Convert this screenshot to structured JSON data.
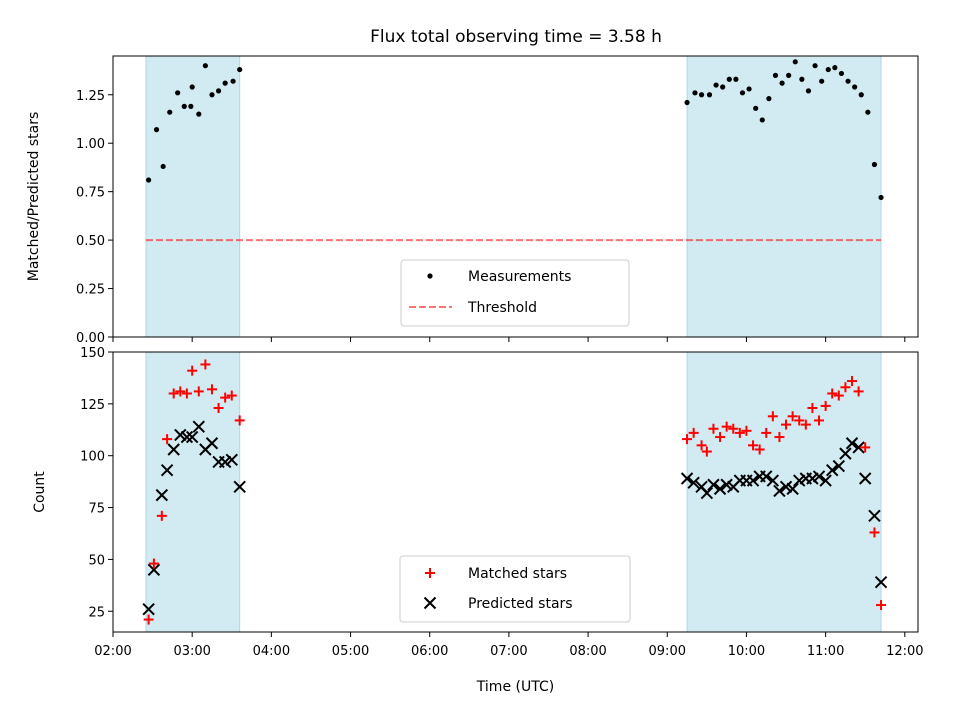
{
  "colors": {
    "band": "#add8e6",
    "measurement": "#000000",
    "threshold": "#ff0000",
    "matched": "#ff0000",
    "predicted": "#000000"
  },
  "chart_data": [
    {
      "type": "scatter",
      "title": "Flux total observing time = 3.58 h",
      "ylabel": "Matched/Predicted stars",
      "xlabel": "",
      "xlim": [
        "02:00",
        "12:10"
      ],
      "ylim": [
        0,
        1.45
      ],
      "yticks": [
        "0.00",
        "0.25",
        "0.50",
        "0.75",
        "1.00",
        "1.25"
      ],
      "xtick_labels_shown": false,
      "observing_windows": [
        [
          "02:25",
          "03:36"
        ],
        [
          "09:15",
          "11:42"
        ]
      ],
      "threshold": {
        "name": "Threshold",
        "value": 0.5,
        "x": [
          "02:25",
          "11:42"
        ],
        "style": "dashed"
      },
      "legend": {
        "placement": "lower-center",
        "entries": [
          "Measurements",
          "Threshold"
        ]
      },
      "series": [
        {
          "name": "Measurements",
          "marker": "dot",
          "points": [
            [
              "02:27",
              0.81
            ],
            [
              "02:33",
              1.07
            ],
            [
              "02:38",
              0.88
            ],
            [
              "02:43",
              1.16
            ],
            [
              "02:49",
              1.26
            ],
            [
              "02:54",
              1.19
            ],
            [
              "02:59",
              1.19
            ],
            [
              "03:00",
              1.29
            ],
            [
              "03:05",
              1.15
            ],
            [
              "03:10",
              1.4
            ],
            [
              "03:15",
              1.25
            ],
            [
              "03:20",
              1.27
            ],
            [
              "03:25",
              1.31
            ],
            [
              "03:31",
              1.32
            ],
            [
              "03:36",
              1.38
            ],
            [
              "09:15",
              1.21
            ],
            [
              "09:21",
              1.26
            ],
            [
              "09:26",
              1.25
            ],
            [
              "09:32",
              1.25
            ],
            [
              "09:37",
              1.3
            ],
            [
              "09:42",
              1.29
            ],
            [
              "09:47",
              1.33
            ],
            [
              "09:52",
              1.33
            ],
            [
              "09:57",
              1.26
            ],
            [
              "10:02",
              1.28
            ],
            [
              "10:07",
              1.18
            ],
            [
              "10:12",
              1.12
            ],
            [
              "10:17",
              1.23
            ],
            [
              "10:22",
              1.35
            ],
            [
              "10:27",
              1.31
            ],
            [
              "10:32",
              1.35
            ],
            [
              "10:37",
              1.42
            ],
            [
              "10:42",
              1.33
            ],
            [
              "10:47",
              1.27
            ],
            [
              "10:52",
              1.4
            ],
            [
              "10:57",
              1.32
            ],
            [
              "11:02",
              1.38
            ],
            [
              "11:07",
              1.39
            ],
            [
              "11:12",
              1.36
            ],
            [
              "11:17",
              1.32
            ],
            [
              "11:22",
              1.29
            ],
            [
              "11:27",
              1.25
            ],
            [
              "11:32",
              1.16
            ],
            [
              "11:37",
              0.89
            ],
            [
              "11:42",
              0.72
            ]
          ]
        }
      ]
    },
    {
      "type": "scatter",
      "title": "",
      "ylabel": "Count",
      "xlabel": "Time (UTC)",
      "xlim": [
        "02:00",
        "12:10"
      ],
      "ylim": [
        15,
        150
      ],
      "yticks": [
        "25",
        "50",
        "75",
        "100",
        "125",
        "150"
      ],
      "xticks": [
        "02:00",
        "03:00",
        "04:00",
        "05:00",
        "06:00",
        "07:00",
        "08:00",
        "09:00",
        "10:00",
        "11:00",
        "12:00"
      ],
      "observing_windows": [
        [
          "02:25",
          "03:36"
        ],
        [
          "09:15",
          "11:42"
        ]
      ],
      "legend": {
        "placement": "lower-center",
        "entries": [
          "Matched stars",
          "Predicted stars"
        ]
      },
      "series": [
        {
          "name": "Matched stars",
          "marker": "plus",
          "points": [
            [
              "02:27",
              21
            ],
            [
              "02:31",
              48
            ],
            [
              "02:37",
              71
            ],
            [
              "02:41",
              108
            ],
            [
              "02:46",
              130
            ],
            [
              "02:51",
              131
            ],
            [
              "02:56",
              130
            ],
            [
              "03:00",
              141
            ],
            [
              "03:05",
              131
            ],
            [
              "03:10",
              144
            ],
            [
              "03:15",
              132
            ],
            [
              "03:20",
              123
            ],
            [
              "03:25",
              128
            ],
            [
              "03:30",
              129
            ],
            [
              "03:36",
              117
            ],
            [
              "09:15",
              108
            ],
            [
              "09:20",
              111
            ],
            [
              "09:26",
              105
            ],
            [
              "09:30",
              102
            ],
            [
              "09:35",
              113
            ],
            [
              "09:40",
              109
            ],
            [
              "09:45",
              114
            ],
            [
              "09:50",
              113
            ],
            [
              "09:55",
              111
            ],
            [
              "10:00",
              112
            ],
            [
              "10:05",
              105
            ],
            [
              "10:10",
              103
            ],
            [
              "10:15",
              111
            ],
            [
              "10:20",
              119
            ],
            [
              "10:25",
              109
            ],
            [
              "10:30",
              115
            ],
            [
              "10:35",
              119
            ],
            [
              "10:40",
              117
            ],
            [
              "10:45",
              115
            ],
            [
              "10:50",
              123
            ],
            [
              "10:55",
              117
            ],
            [
              "11:00",
              124
            ],
            [
              "11:05",
              130
            ],
            [
              "11:10",
              129
            ],
            [
              "11:15",
              133
            ],
            [
              "11:20",
              136
            ],
            [
              "11:25",
              131
            ],
            [
              "11:30",
              104
            ],
            [
              "11:37",
              63
            ],
            [
              "11:42",
              28
            ]
          ]
        },
        {
          "name": "Predicted stars",
          "marker": "x",
          "points": [
            [
              "02:27",
              26
            ],
            [
              "02:31",
              45
            ],
            [
              "02:37",
              81
            ],
            [
              "02:41",
              93
            ],
            [
              "02:46",
              103
            ],
            [
              "02:51",
              110
            ],
            [
              "02:56",
              109
            ],
            [
              "03:00",
              109
            ],
            [
              "03:05",
              114
            ],
            [
              "03:10",
              103
            ],
            [
              "03:15",
              106
            ],
            [
              "03:20",
              97
            ],
            [
              "03:25",
              97
            ],
            [
              "03:30",
              98
            ],
            [
              "03:36",
              85
            ],
            [
              "09:15",
              89
            ],
            [
              "09:20",
              87
            ],
            [
              "09:26",
              85
            ],
            [
              "09:30",
              82
            ],
            [
              "09:35",
              86
            ],
            [
              "09:40",
              84
            ],
            [
              "09:45",
              86
            ],
            [
              "09:50",
              85
            ],
            [
              "09:55",
              88
            ],
            [
              "10:00",
              88
            ],
            [
              "10:05",
              88
            ],
            [
              "10:10",
              90
            ],
            [
              "10:15",
              90
            ],
            [
              "10:20",
              88
            ],
            [
              "10:25",
              83
            ],
            [
              "10:30",
              85
            ],
            [
              "10:35",
              84
            ],
            [
              "10:40",
              88
            ],
            [
              "10:45",
              89
            ],
            [
              "10:50",
              89
            ],
            [
              "10:55",
              90
            ],
            [
              "11:00",
              88
            ],
            [
              "11:05",
              93
            ],
            [
              "11:10",
              95
            ],
            [
              "11:15",
              101
            ],
            [
              "11:20",
              106
            ],
            [
              "11:25",
              104
            ],
            [
              "11:30",
              89
            ],
            [
              "11:37",
              71
            ],
            [
              "11:42",
              39
            ]
          ]
        }
      ]
    }
  ]
}
